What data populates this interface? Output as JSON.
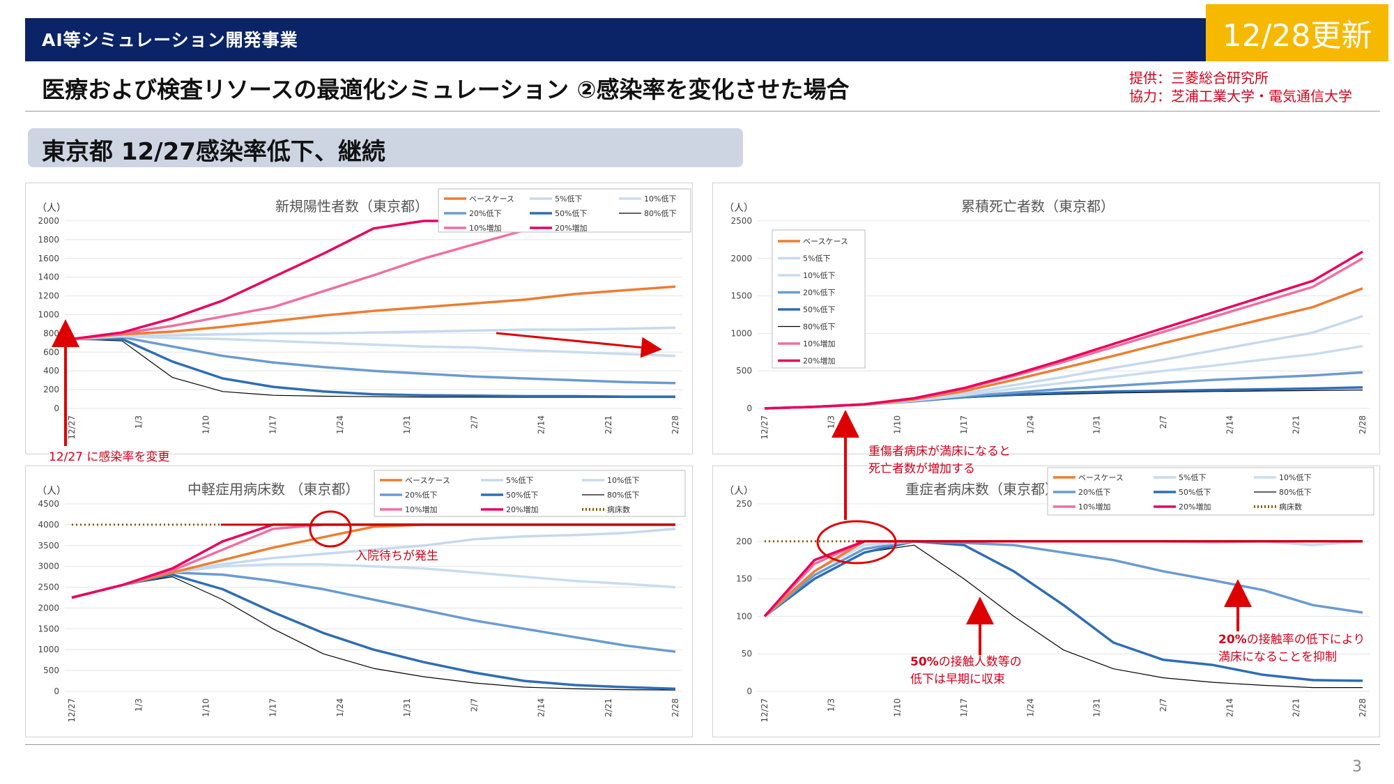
{
  "header": {
    "title": "AI等シミュレーション開発事業",
    "date_badge": "12/28更新"
  },
  "slide_title": "医療および検査リソースの最適化シミュレーション ②感染率を変化させた場合",
  "credits": {
    "line1": "提供：三菱総合研究所",
    "line2": "協力：芝浦工業大学・電気通信大学"
  },
  "section_title": "東京都 12/27感染率低下、継続",
  "page_number": "3",
  "annotations": {
    "infection_change": "12/27 に感染率を変更",
    "waiting": "入院待ちが発生",
    "severe_full_1": "重傷者病床が満床になると",
    "severe_full_2": "死亡者数が増加する",
    "contact50_bold": "50%",
    "contact50_rest": "の接触人数等の",
    "contact50_2": "低下は早期に収束",
    "contact20_bold": "20%",
    "contact20_rest": "の接触率の低下により",
    "contact20_2": "満床になることを抑制"
  },
  "colors": {
    "base": "#ed7d31",
    "down5": "#c5d9ee",
    "down10": "#c8dcf0",
    "down20": "#6a9bd0",
    "down50": "#2e6db4",
    "down80": "#000000",
    "up10": "#f06fa0",
    "up20": "#e8005d",
    "beds": "#8b5a00",
    "capacity": "#cc0000",
    "arrow": "#dd0000"
  },
  "chart_data": [
    {
      "id": "positives",
      "type": "line",
      "title": "新規陽性者数（東京都）",
      "ylabel": "（人）",
      "ylim": [
        0,
        2000
      ],
      "yticks": [
        0,
        200,
        400,
        600,
        800,
        1000,
        1200,
        1400,
        1600,
        1800,
        2000
      ],
      "xticks": [
        "12/27",
        "1/3",
        "1/10",
        "1/17",
        "1/24",
        "1/31",
        "2/7",
        "2/14",
        "2/21",
        "2/28"
      ],
      "legend_position": "top-right",
      "series": [
        {
          "key": "base",
          "name": "ベースケース",
          "values": [
            740,
            790,
            820,
            870,
            930,
            990,
            1040,
            1080,
            1120,
            1160,
            1220,
            1260,
            1300
          ]
        },
        {
          "key": "down5",
          "name": "5%低下",
          "values": [
            740,
            780,
            780,
            790,
            800,
            800,
            810,
            820,
            830,
            840,
            840,
            850,
            860
          ]
        },
        {
          "key": "down10",
          "name": "10%低下",
          "values": [
            740,
            770,
            750,
            740,
            720,
            700,
            680,
            660,
            650,
            620,
            600,
            580,
            560
          ]
        },
        {
          "key": "down20",
          "name": "20%低下",
          "values": [
            740,
            760,
            660,
            560,
            490,
            440,
            400,
            370,
            340,
            320,
            300,
            280,
            270
          ]
        },
        {
          "key": "down50",
          "name": "50%低下",
          "values": [
            740,
            740,
            500,
            320,
            230,
            180,
            150,
            140,
            135,
            130,
            130,
            125,
            125
          ]
        },
        {
          "key": "down80",
          "name": "80%低下",
          "values": [
            740,
            720,
            330,
            180,
            140,
            130,
            125,
            120,
            120,
            118,
            118,
            115,
            115
          ]
        },
        {
          "key": "up10",
          "name": "10%増加",
          "values": [
            740,
            800,
            880,
            980,
            1080,
            1250,
            1420,
            1600,
            1750,
            1900,
            2000,
            2000,
            2000
          ]
        },
        {
          "key": "up20",
          "name": "20%増加",
          "values": [
            740,
            810,
            960,
            1150,
            1400,
            1650,
            1920,
            2000,
            2000,
            2000,
            2000,
            2000,
            2000
          ]
        }
      ]
    },
    {
      "id": "deaths",
      "type": "line",
      "title": "累積死亡者数（東京都）",
      "ylabel": "（人）",
      "ylim": [
        0,
        2500
      ],
      "yticks": [
        0,
        500,
        1000,
        1500,
        2000,
        2500
      ],
      "xticks": [
        "12/27",
        "1/3",
        "1/10",
        "1/17",
        "1/24",
        "1/31",
        "2/7",
        "2/14",
        "2/21",
        "2/28"
      ],
      "legend_position": "top-left",
      "series": [
        {
          "key": "base",
          "name": "ベースケース",
          "values": [
            0,
            20,
            50,
            120,
            230,
            380,
            540,
            700,
            870,
            1030,
            1190,
            1350,
            1600
          ]
        },
        {
          "key": "down5",
          "name": "5%低下",
          "values": [
            0,
            20,
            50,
            110,
            200,
            310,
            420,
            540,
            650,
            770,
            890,
            1010,
            1230
          ]
        },
        {
          "key": "down10",
          "name": "10%低下",
          "values": [
            0,
            20,
            50,
            105,
            175,
            260,
            340,
            420,
            500,
            570,
            650,
            720,
            830
          ]
        },
        {
          "key": "down20",
          "name": "20%低下",
          "values": [
            0,
            20,
            50,
            100,
            160,
            210,
            260,
            300,
            340,
            380,
            410,
            440,
            480
          ]
        },
        {
          "key": "down50",
          "name": "50%低下",
          "values": [
            0,
            20,
            50,
            95,
            150,
            185,
            210,
            225,
            235,
            245,
            255,
            265,
            280
          ]
        },
        {
          "key": "down80",
          "name": "80%低下",
          "values": [
            0,
            20,
            50,
            90,
            140,
            170,
            190,
            205,
            215,
            225,
            232,
            238,
            245
          ]
        },
        {
          "key": "up10",
          "name": "10%増加",
          "values": [
            0,
            20,
            55,
            130,
            260,
            430,
            620,
            820,
            1020,
            1220,
            1420,
            1620,
            2000
          ]
        },
        {
          "key": "up20",
          "name": "20%増加",
          "values": [
            0,
            20,
            55,
            135,
            270,
            450,
            650,
            860,
            1070,
            1280,
            1490,
            1700,
            2090
          ]
        }
      ]
    },
    {
      "id": "mild_beds",
      "type": "line",
      "title": "中軽症用病床数 （東京都）",
      "ylabel": "（人）",
      "ylim": [
        0,
        4500
      ],
      "yticks": [
        0,
        500,
        1000,
        1500,
        2000,
        2500,
        3000,
        3500,
        4000,
        4500
      ],
      "xticks": [
        "12/27",
        "1/3",
        "1/10",
        "1/17",
        "1/24",
        "1/31",
        "2/7",
        "2/14",
        "2/21",
        "2/28"
      ],
      "legend_position": "top-right",
      "series": [
        {
          "key": "base",
          "name": "ベースケース",
          "values": [
            2250,
            2550,
            2850,
            3150,
            3450,
            3700,
            3950,
            4000,
            4000,
            4000,
            4000,
            4000,
            4000
          ]
        },
        {
          "key": "down5",
          "name": "5%低下",
          "values": [
            2250,
            2550,
            2850,
            3050,
            3200,
            3300,
            3400,
            3500,
            3650,
            3720,
            3750,
            3800,
            3900
          ]
        },
        {
          "key": "down10",
          "name": "10%低下",
          "values": [
            2250,
            2550,
            2850,
            3000,
            3050,
            3050,
            3000,
            2950,
            2850,
            2750,
            2650,
            2580,
            2500
          ]
        },
        {
          "key": "down20",
          "name": "20%低下",
          "values": [
            2250,
            2550,
            2850,
            2800,
            2650,
            2450,
            2200,
            1950,
            1700,
            1500,
            1300,
            1100,
            950
          ]
        },
        {
          "key": "down50",
          "name": "50%低下",
          "values": [
            2250,
            2550,
            2800,
            2450,
            1900,
            1400,
            1000,
            700,
            450,
            250,
            150,
            100,
            60
          ]
        },
        {
          "key": "down80",
          "name": "80%低下",
          "values": [
            2250,
            2550,
            2750,
            2200,
            1500,
            900,
            550,
            350,
            200,
            100,
            60,
            40,
            30
          ]
        },
        {
          "key": "up10",
          "name": "10%増加",
          "values": [
            2250,
            2550,
            2900,
            3400,
            3900,
            4000,
            4000,
            4000,
            4000,
            4000,
            4000,
            4000,
            4000
          ]
        },
        {
          "key": "up20",
          "name": "20%増加",
          "values": [
            2250,
            2550,
            2950,
            3600,
            4000,
            4000,
            4000,
            4000,
            4000,
            4000,
            4000,
            4000,
            4000
          ]
        }
      ],
      "capacity": {
        "key": "beds",
        "name": "病床数",
        "value": 4000
      }
    },
    {
      "id": "severe_beds",
      "type": "line",
      "title": "重症者病床数（東京都）",
      "ylabel": "（人）",
      "ylim": [
        0,
        250
      ],
      "yticks": [
        0,
        50,
        100,
        150,
        200,
        250
      ],
      "xticks": [
        "12/27",
        "1/3",
        "1/10",
        "1/17",
        "1/24",
        "1/31",
        "2/7",
        "2/14",
        "2/21",
        "2/28"
      ],
      "legend_position": "top-right",
      "series": [
        {
          "key": "base",
          "name": "ベースケース",
          "values": [
            100,
            160,
            200,
            200,
            200,
            200,
            200,
            200,
            200,
            200,
            200,
            200,
            200
          ]
        },
        {
          "key": "down5",
          "name": "5%低下",
          "values": [
            100,
            160,
            200,
            200,
            200,
            200,
            200,
            200,
            200,
            200,
            200,
            200,
            200
          ]
        },
        {
          "key": "down10",
          "name": "10%低下",
          "values": [
            100,
            160,
            195,
            200,
            200,
            200,
            200,
            200,
            200,
            198,
            200,
            195,
            200
          ]
        },
        {
          "key": "down20",
          "name": "20%低下",
          "values": [
            100,
            155,
            190,
            200,
            198,
            195,
            185,
            175,
            160,
            148,
            135,
            115,
            105
          ]
        },
        {
          "key": "down50",
          "name": "50%低下",
          "values": [
            100,
            150,
            185,
            200,
            195,
            160,
            115,
            65,
            42,
            35,
            22,
            15,
            14
          ]
        },
        {
          "key": "down80",
          "name": "80%低下",
          "values": [
            100,
            150,
            185,
            195,
            150,
            100,
            55,
            30,
            18,
            12,
            8,
            5,
            5
          ]
        },
        {
          "key": "up10",
          "name": "10%増加",
          "values": [
            100,
            170,
            200,
            200,
            200,
            200,
            200,
            200,
            200,
            200,
            200,
            200,
            200
          ]
        },
        {
          "key": "up20",
          "name": "20%増加",
          "values": [
            100,
            175,
            200,
            200,
            200,
            200,
            200,
            200,
            200,
            200,
            200,
            200,
            200
          ]
        }
      ],
      "capacity": {
        "key": "beds",
        "name": "病床数",
        "value": 200
      }
    }
  ]
}
